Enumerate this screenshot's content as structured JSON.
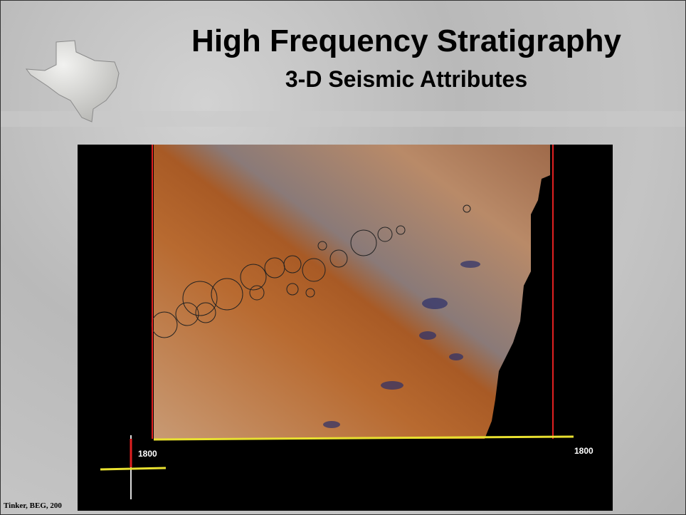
{
  "slide": {
    "title": "High Frequency Stratigraphy",
    "subtitle": "3-D Seismic Attributes",
    "image": {
      "left_label": "1800",
      "right_label": "1800"
    },
    "footer": "Tinker, BEG, 200"
  }
}
